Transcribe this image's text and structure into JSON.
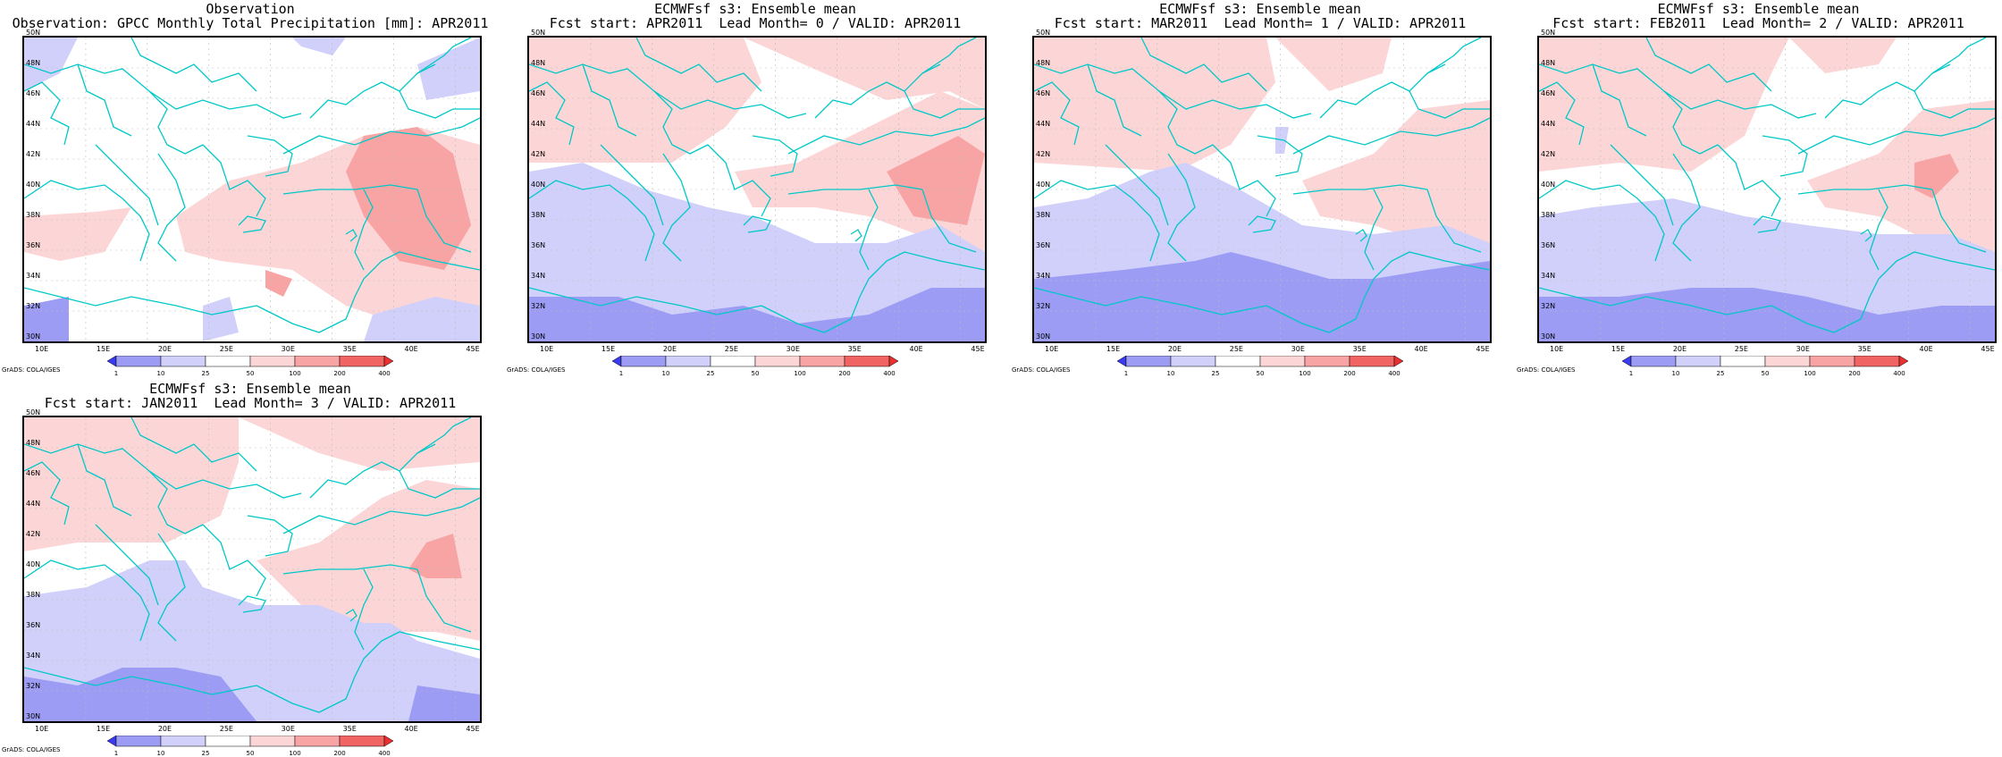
{
  "lat_labels": [
    "30N",
    "32N",
    "34N",
    "36N",
    "38N",
    "40N",
    "42N",
    "44N",
    "46N",
    "48N",
    "50N"
  ],
  "lon_labels": [
    "10E",
    "15E",
    "20E",
    "25E",
    "30E",
    "35E",
    "40E",
    "45E"
  ],
  "colorbar": {
    "ticks": [
      "1",
      "10",
      "25",
      "50",
      "100",
      "200",
      "400"
    ],
    "colors": [
      "#3a3af0",
      "#9c9cf4",
      "#d0d0fa",
      "#ffffff",
      "#fcd6d6",
      "#f8a4a4",
      "#f06464",
      "#e83030"
    ]
  },
  "credit": "GrADS: COLA/IGES",
  "coast_color": "#00c8c8",
  "panels": [
    {
      "line1": "Observation",
      "line2": "Observation: GPCC Monthly Total Precipitation [mm]: APR2011"
    },
    {
      "line1": "ECMWFsf s3: Ensemble mean",
      "line2": "Fcst start: APR2011  Lead Month= 0 / VALID: APR2011"
    },
    {
      "line1": "ECMWFsf s3: Ensemble mean",
      "line2": "Fcst start: MAR2011  Lead Month= 1 / VALID: APR2011"
    },
    {
      "line1": "ECMWFsf s3: Ensemble mean",
      "line2": "Fcst start: FEB2011  Lead Month= 2 / VALID: APR2011"
    },
    {
      "line1": "ECMWFsf s3: Ensemble mean",
      "line2": "Fcst start: JAN2011  Lead Month= 3 / VALID: APR2011"
    }
  ]
}
